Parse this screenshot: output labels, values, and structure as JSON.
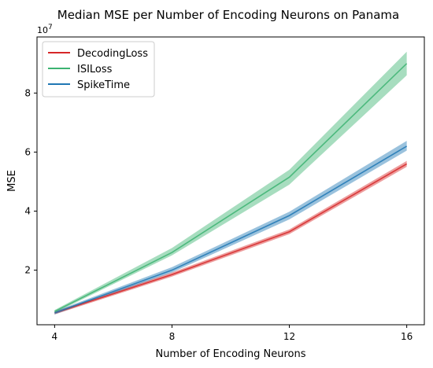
{
  "chart_data": {
    "type": "line",
    "title": "Median MSE per Number of Encoding Neurons on Panama",
    "xlabel": "Number of Encoding Neurons",
    "ylabel": "MSE",
    "y_offset_label": "1e7",
    "x": [
      4,
      8,
      12,
      16
    ],
    "x_ticks": [
      "4",
      "8",
      "12",
      "16"
    ],
    "y_ticks": [
      "2",
      "4",
      "6",
      "8"
    ],
    "xlim": [
      3.4,
      16.6
    ],
    "ylim": [
      0.15,
      9.9
    ],
    "y_tick_values": [
      2,
      4,
      6,
      8
    ],
    "legend_position": "top-left",
    "series": [
      {
        "name": "DecodingLoss",
        "color": "#d62728",
        "values": [
          0.55,
          1.85,
          3.3,
          5.6
        ],
        "lower": [
          0.5,
          1.78,
          3.22,
          5.5
        ],
        "upper": [
          0.6,
          1.92,
          3.38,
          5.7
        ]
      },
      {
        "name": "ISILoss",
        "color": "#3cb371",
        "values": [
          0.6,
          2.6,
          5.15,
          9.0
        ],
        "lower": [
          0.55,
          2.5,
          4.9,
          8.6
        ],
        "upper": [
          0.65,
          2.75,
          5.4,
          9.4
        ]
      },
      {
        "name": "SpikeTime",
        "color": "#1f77b4",
        "values": [
          0.55,
          2.0,
          3.85,
          6.2
        ],
        "lower": [
          0.5,
          1.92,
          3.72,
          6.05
        ],
        "upper": [
          0.6,
          2.1,
          3.98,
          6.38
        ]
      }
    ]
  }
}
